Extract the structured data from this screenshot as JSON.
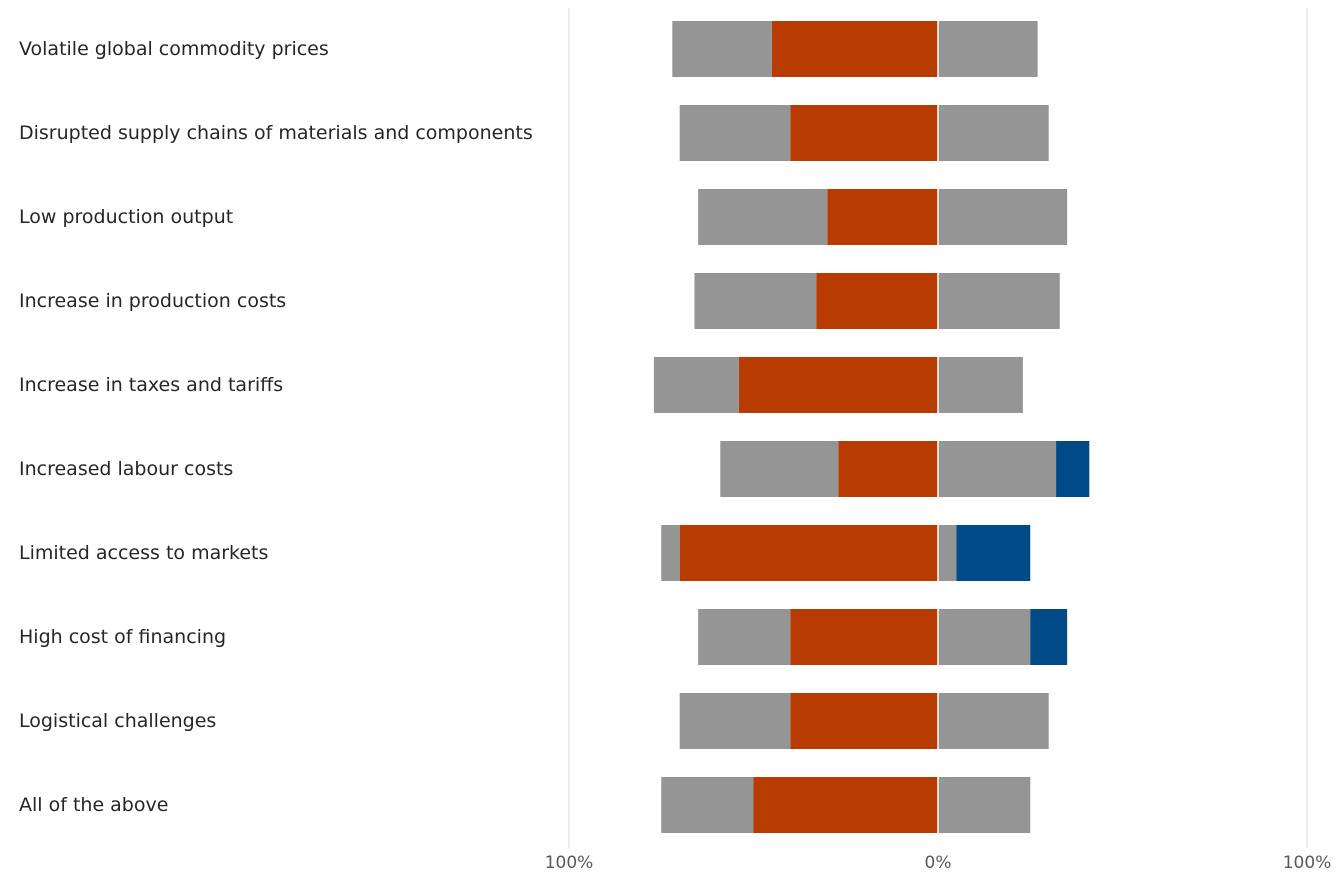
{
  "chart_data": {
    "type": "bar",
    "orientation": "horizontal",
    "stacked": "diverging",
    "title": "",
    "xlabel": "",
    "ylabel": "",
    "xlim": [
      -100,
      100
    ],
    "grid": true,
    "legend": "none",
    "x_ticks": [
      {
        "value": -100,
        "label": "100%"
      },
      {
        "value": 0,
        "label": "0%"
      },
      {
        "value": 100,
        "label": "100%"
      }
    ],
    "categories": [
      "Volatile global commodity prices",
      "Disrupted supply chains of materials and components",
      "Low production output",
      "Increase in production costs",
      "Increase in taxes and tariffs",
      "Increased labour costs",
      "Limited access to markets",
      "High cost of financing",
      "Logistical challenges",
      "All of the above"
    ],
    "series": [
      {
        "color": "#b83b02",
        "side": "negative",
        "values": [
          45,
          40,
          30,
          33,
          54,
          27,
          70,
          40,
          40,
          50
        ]
      },
      {
        "color": "#959595",
        "side": "negative",
        "values": [
          27,
          30,
          35,
          33,
          23,
          32,
          5,
          25,
          30,
          25
        ]
      },
      {
        "color": "#959595",
        "side": "positive",
        "values": [
          27,
          30,
          35,
          33,
          23,
          32,
          5,
          25,
          30,
          25
        ]
      },
      {
        "color": "#004b87",
        "side": "positive",
        "values": [
          0,
          0,
          0,
          0,
          0,
          9,
          20,
          10,
          0,
          0
        ]
      }
    ]
  }
}
